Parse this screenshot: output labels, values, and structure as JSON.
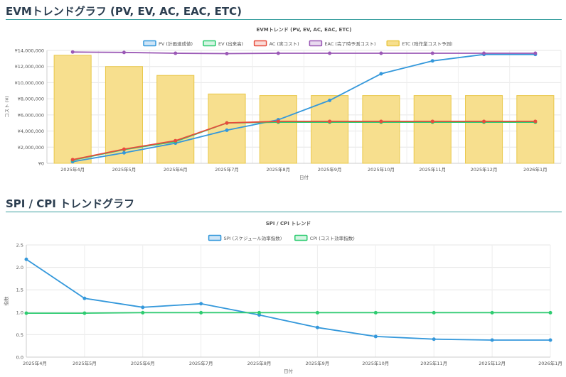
{
  "sections": {
    "evm_title": "EVMトレンドグラフ (PV, EV, AC, EAC, ETC)",
    "spi_title": "SPI / CPI トレンドグラフ"
  },
  "chart_data": [
    {
      "type": "bar+line",
      "title": "EVMトレンド (PV, EV, AC, EAC, ETC)",
      "xlabel": "日付",
      "ylabel": "コスト (¥)",
      "ylim": [
        0,
        14000000
      ],
      "y_ticks": [
        "¥0",
        "¥2,000,000",
        "¥4,000,000",
        "¥6,000,000",
        "¥8,000,000",
        "¥10,000,000",
        "¥12,000,000",
        "¥14,000,000"
      ],
      "y_tick_values": [
        0,
        2000000,
        4000000,
        6000000,
        8000000,
        10000000,
        12000000,
        14000000
      ],
      "categories": [
        "2025年4月",
        "2025年5月",
        "2025年6月",
        "2025年7月",
        "2025年8月",
        "2025年9月",
        "2025年10月",
        "2025年11月",
        "2025年12月",
        "2026年1月"
      ],
      "legend_position": "top",
      "series": [
        {
          "name": "PV (計画達成値)",
          "kind": "line",
          "color": "#3498db",
          "fill": "#cfe5f7",
          "values": [
            200000,
            1300000,
            2500000,
            4100000,
            5400000,
            7800000,
            11100000,
            12700000,
            13500000,
            13500000
          ]
        },
        {
          "name": "EV (出来高)",
          "kind": "line",
          "color": "#2ecc71",
          "fill": "#d5f5e3",
          "values": [
            400000,
            1700000,
            2700000,
            5000000,
            5100000,
            5100000,
            5100000,
            5100000,
            5100000,
            5100000
          ]
        },
        {
          "name": "AC (実コスト)",
          "kind": "line",
          "color": "#e74c3c",
          "fill": "#fadbd8",
          "values": [
            450000,
            1750000,
            2800000,
            5000000,
            5200000,
            5200000,
            5200000,
            5200000,
            5200000,
            5200000
          ]
        },
        {
          "name": "EAC (完了時予測コスト)",
          "kind": "line",
          "color": "#9b59b6",
          "fill": "#e8daef",
          "values": [
            13800000,
            13750000,
            13650000,
            13600000,
            13650000,
            13650000,
            13650000,
            13650000,
            13650000,
            13650000
          ]
        },
        {
          "name": "ETC (残作業コスト予測)",
          "kind": "bar",
          "color": "#e9c84a",
          "fill": "#f7df8e",
          "values": [
            13400000,
            12000000,
            10900000,
            8600000,
            8400000,
            8400000,
            8400000,
            8400000,
            8400000,
            8400000
          ]
        }
      ]
    },
    {
      "type": "line",
      "title": "SPI / CPI トレンド",
      "xlabel": "日付",
      "ylabel": "指数",
      "ylim": [
        0,
        2.5
      ],
      "y_ticks": [
        "0.0",
        "0.5",
        "1.0",
        "1.5",
        "2.0",
        "2.5"
      ],
      "y_tick_values": [
        0,
        0.5,
        1.0,
        1.5,
        2.0,
        2.5
      ],
      "categories": [
        "2025年4月",
        "2025年5月",
        "2025年6月",
        "2025年7月",
        "2025年8月",
        "2025年9月",
        "2025年10月",
        "2025年11月",
        "2025年12月",
        "2026年1月"
      ],
      "legend_position": "top",
      "series": [
        {
          "name": "SPI (スケジュール効率指数)",
          "kind": "line",
          "color": "#3498db",
          "fill": "#cfe5f7",
          "values": [
            2.18,
            1.31,
            1.11,
            1.19,
            0.94,
            0.66,
            0.46,
            0.4,
            0.38,
            0.38
          ]
        },
        {
          "name": "CPI (コスト効率指数)",
          "kind": "line",
          "color": "#2ecc71",
          "fill": "#d5f5e3",
          "values": [
            0.98,
            0.98,
            0.99,
            0.99,
            0.99,
            0.99,
            0.99,
            0.99,
            0.99,
            0.99
          ]
        }
      ]
    }
  ]
}
